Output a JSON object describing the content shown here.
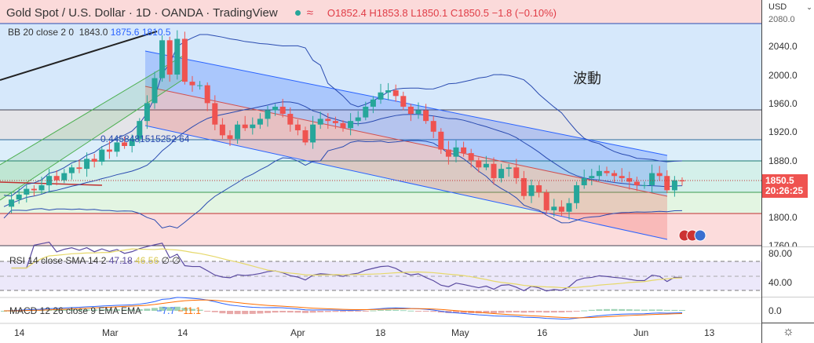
{
  "header": {
    "title": "Gold Spot / U.S. Dollar · 1D · OANDA · TradingView",
    "approx_icon": "≈",
    "open": "O1852.4",
    "high": "H1853.8",
    "low": "L1850.1",
    "close": "C1850.5",
    "change": "−1.8 (−0.10%)"
  },
  "bb": {
    "label": "BB 20 close 2 0",
    "basis": "1843.0",
    "upper": "1875.6",
    "lower": "1810.5"
  },
  "annotations": {
    "wave": "波動",
    "fib_value": "0.4458481515252 64"
  },
  "rsi": {
    "label": "RSI 14 close SMA 14 2",
    "value": "47.18",
    "sma": "46.56",
    "extra": "∅ ∅"
  },
  "macd": {
    "label": "MACD 12 26 close 9 EMA EMA",
    "macd": "−7.7",
    "signal": "−11.1"
  },
  "price_axis": {
    "currency": "USD",
    "ticks": [
      "2080.0",
      "2040.0",
      "2000.0",
      "1960.0",
      "1920.0",
      "1880.0",
      "1800.0",
      "1760.0"
    ],
    "last_price": "1850.5",
    "countdown": "20:26:25",
    "rsi_ticks": [
      "80.00",
      "40.00"
    ],
    "macd_ticks": [
      "0.0"
    ]
  },
  "time_axis": [
    "14",
    "Mar",
    "14",
    "Apr",
    "18",
    "May",
    "16",
    "Jun",
    "13"
  ],
  "colors": {
    "up": "#26a69a",
    "down": "#ef5350",
    "bb": "#2a4bb0"
  },
  "chart_data": {
    "type": "candlestick",
    "closes": [
      1815,
      1825,
      1832,
      1840,
      1838,
      1845,
      1858,
      1852,
      1862,
      1870,
      1868,
      1882,
      1878,
      1895,
      1892,
      1905,
      1900,
      1910,
      1935,
      1960,
      1995,
      2048,
      2000,
      2050,
      1990,
      1985,
      1985,
      1960,
      1930,
      1915,
      1910,
      1930,
      1925,
      1930,
      1938,
      1950,
      1955,
      1945,
      1930,
      1922,
      1905,
      1930,
      1938,
      1935,
      1932,
      1925,
      1935,
      1940,
      1955,
      1965,
      1975,
      1978,
      1970,
      1955,
      1945,
      1950,
      1935,
      1920,
      1895,
      1885,
      1898,
      1890,
      1880,
      1870,
      1875,
      1855,
      1868,
      1870,
      1855,
      1830,
      1845,
      1835,
      1810,
      1815,
      1808,
      1820,
      1845,
      1855,
      1858,
      1865,
      1862,
      1858,
      1855,
      1850,
      1845,
      1845,
      1862,
      1858,
      1838,
      1852,
      1850.5
    ]
  }
}
